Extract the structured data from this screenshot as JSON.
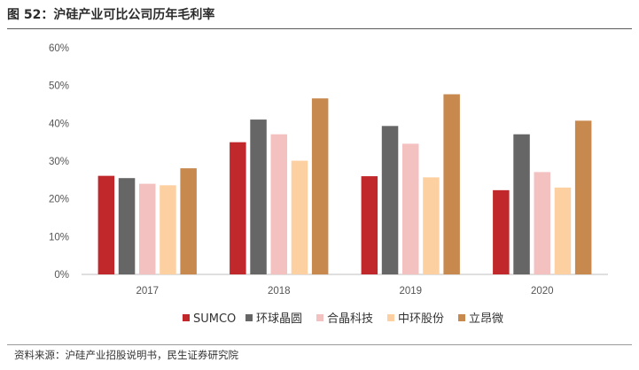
{
  "header": {
    "title": "图 52：沪硅产业可比公司历年毛利率"
  },
  "footer": {
    "source": "资料来源：沪硅产业招股说明书，民生证券研究院"
  },
  "chart_data": {
    "type": "bar",
    "title": "",
    "xlabel": "",
    "ylabel": "",
    "categories": [
      "2017",
      "2018",
      "2019",
      "2020"
    ],
    "ylim": [
      0,
      60
    ],
    "yticks": [
      "0%",
      "10%",
      "20%",
      "30%",
      "40%",
      "50%",
      "60%"
    ],
    "grid": false,
    "legend_position": "bottom",
    "series": [
      {
        "name": "SUMCO",
        "color": "#c0282b",
        "values": [
          26.1,
          35.0,
          26.0,
          22.3
        ]
      },
      {
        "name": "环球晶圆",
        "color": "#666666",
        "values": [
          25.5,
          41.0,
          39.3,
          37.1
        ]
      },
      {
        "name": "合晶科技",
        "color": "#f4c1c1",
        "values": [
          24.0,
          37.1,
          34.6,
          27.1
        ]
      },
      {
        "name": "中环股份",
        "color": "#fdd0a2",
        "values": [
          23.6,
          30.1,
          25.7,
          23.0
        ]
      },
      {
        "name": "立昂微",
        "color": "#c8894f",
        "values": [
          28.1,
          46.6,
          47.7,
          40.7
        ]
      }
    ]
  }
}
